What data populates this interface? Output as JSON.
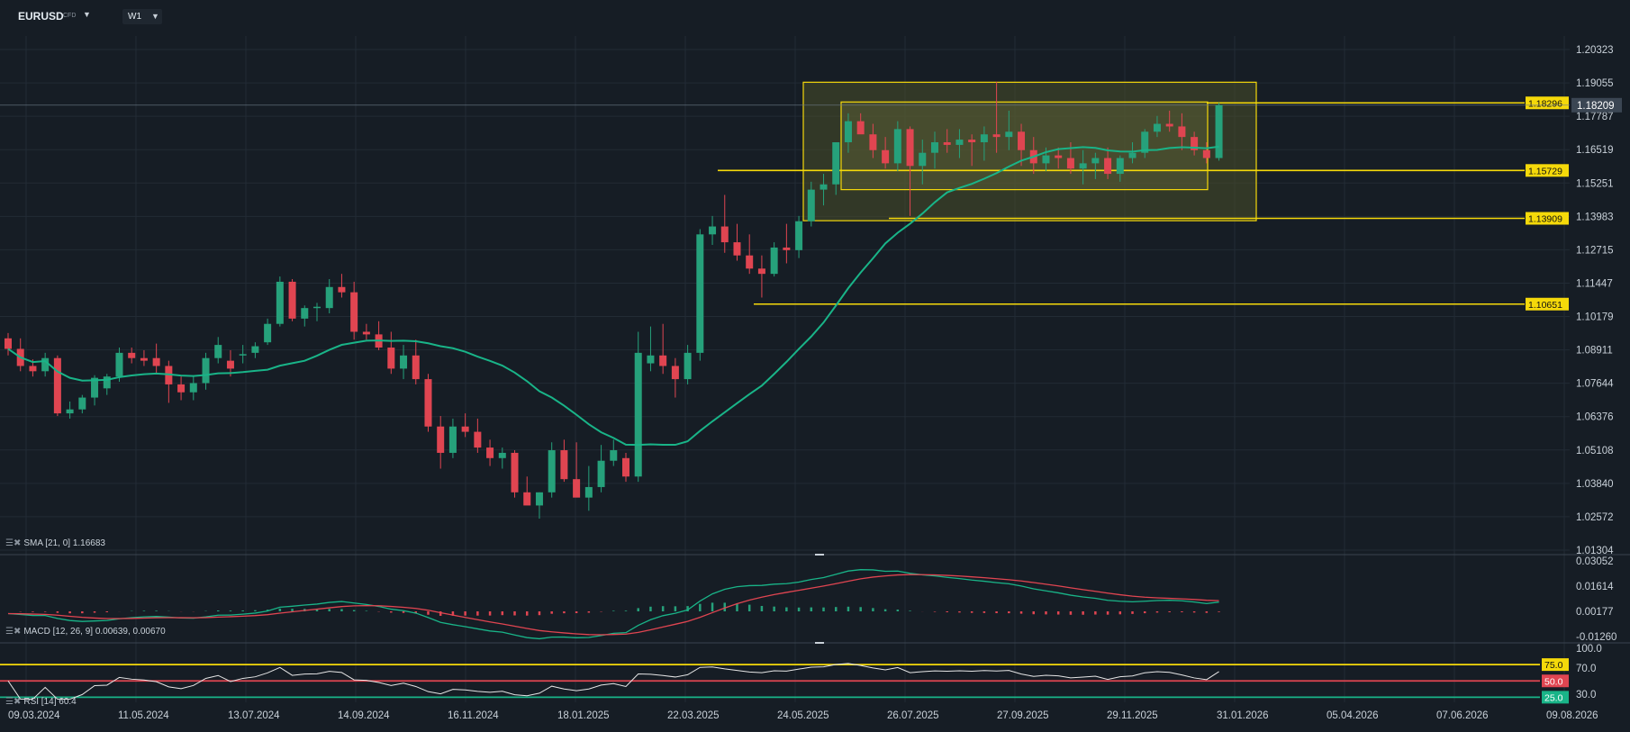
{
  "header": {
    "symbol": "EURUSD",
    "symbol_suffix": "CFD",
    "timeframe": "W1"
  },
  "colors": {
    "bg": "#161d25",
    "grid": "#222b35",
    "up": "#26a17b",
    "down": "#e04551",
    "sma": "#19b488",
    "hline": "#f5d90a",
    "box_outer_fill": "#4b4f2a",
    "box_inner_fill": "#5a5d35",
    "macd_line": "#19b488",
    "signal_line": "#e04551",
    "rsi_line": "#e6e6e6",
    "rsi_upper": "#f5d90a",
    "rsi_mid": "#e04551",
    "rsi_lower": "#19b488"
  },
  "chart_data": [
    {
      "type": "candlestick",
      "title": "EURUSD W1",
      "x_tick_labels": [
        "09.03.2024",
        "11.05.2024",
        "13.07.2024",
        "14.09.2024",
        "16.11.2024",
        "18.01.2025",
        "22.03.2025",
        "24.05.2025",
        "26.07.2025",
        "27.09.2025",
        "29.11.2025",
        "31.01.2026",
        "05.04.2026",
        "07.06.2026",
        "09.08.2026"
      ],
      "y_tick_labels": [
        "1.20323",
        "1.19055",
        "1.17787",
        "1.16519",
        "1.15251",
        "1.13983",
        "1.12715",
        "1.11447",
        "1.10179",
        "1.08911",
        "1.07644",
        "1.06376",
        "1.05108",
        "1.03840",
        "1.02572",
        "1.01304"
      ],
      "ylim": [
        1.01304,
        1.20323
      ],
      "current_price": "1.18209",
      "candles_ohlc": [
        [
          1.0935,
          1.0955,
          1.087,
          1.0895
        ],
        [
          1.0895,
          1.0935,
          1.081,
          1.083
        ],
        [
          1.083,
          1.0855,
          1.079,
          1.081
        ],
        [
          1.081,
          1.088,
          1.079,
          1.086
        ],
        [
          1.086,
          1.087,
          1.064,
          1.065
        ],
        [
          1.065,
          1.0695,
          1.063,
          1.0665
        ],
        [
          1.0665,
          1.072,
          1.065,
          1.071
        ],
        [
          1.071,
          1.0795,
          1.068,
          1.0785
        ],
        [
          1.0745,
          1.08,
          1.072,
          1.079
        ],
        [
          1.079,
          1.09,
          1.077,
          1.088
        ],
        [
          1.088,
          1.09,
          1.084,
          1.086
        ],
        [
          1.086,
          1.089,
          1.083,
          1.085
        ],
        [
          1.086,
          1.0915,
          1.08,
          1.083
        ],
        [
          1.083,
          1.085,
          1.069,
          1.076
        ],
        [
          1.076,
          1.079,
          1.07,
          1.073
        ],
        [
          1.073,
          1.079,
          1.07,
          1.0765
        ],
        [
          1.0765,
          1.088,
          1.074,
          1.086
        ],
        [
          1.086,
          1.094,
          1.084,
          1.091
        ],
        [
          1.085,
          1.089,
          1.079,
          1.082
        ],
        [
          1.087,
          1.091,
          1.084,
          1.0875
        ],
        [
          1.088,
          1.092,
          1.086,
          1.0905
        ],
        [
          1.092,
          1.101,
          1.091,
          1.099
        ],
        [
          1.099,
          1.117,
          1.098,
          1.115
        ],
        [
          1.115,
          1.116,
          1.1,
          1.101
        ],
        [
          1.101,
          1.106,
          1.098,
          1.105
        ],
        [
          1.105,
          1.107,
          1.1,
          1.1055
        ],
        [
          1.105,
          1.116,
          1.103,
          1.113
        ],
        [
          1.113,
          1.118,
          1.109,
          1.111
        ],
        [
          1.111,
          1.115,
          1.093,
          1.096
        ],
        [
          1.096,
          1.099,
          1.093,
          1.095
        ],
        [
          1.095,
          1.1,
          1.089,
          1.09
        ],
        [
          1.09,
          1.096,
          1.08,
          1.082
        ],
        [
          1.082,
          1.091,
          1.078,
          1.087
        ],
        [
          1.087,
          1.093,
          1.076,
          1.078
        ],
        [
          1.078,
          1.08,
          1.058,
          1.06
        ],
        [
          1.06,
          1.064,
          1.044,
          1.05
        ],
        [
          1.05,
          1.063,
          1.048,
          1.06
        ],
        [
          1.06,
          1.065,
          1.056,
          1.058
        ],
        [
          1.058,
          1.063,
          1.05,
          1.052
        ],
        [
          1.052,
          1.055,
          1.045,
          1.048
        ],
        [
          1.048,
          1.052,
          1.044,
          1.05
        ],
        [
          1.05,
          1.051,
          1.033,
          1.035
        ],
        [
          1.035,
          1.041,
          1.032,
          1.03
        ],
        [
          1.03,
          1.035,
          1.025,
          1.035
        ],
        [
          1.035,
          1.054,
          1.033,
          1.051
        ],
        [
          1.051,
          1.055,
          1.039,
          1.04
        ],
        [
          1.04,
          1.054,
          1.038,
          1.033
        ],
        [
          1.033,
          1.045,
          1.028,
          1.037
        ],
        [
          1.037,
          1.053,
          1.035,
          1.047
        ],
        [
          1.047,
          1.055,
          1.045,
          1.051
        ],
        [
          1.048,
          1.05,
          1.039,
          1.041
        ],
        [
          1.041,
          1.096,
          1.039,
          1.088
        ],
        [
          1.084,
          1.098,
          1.081,
          1.087
        ],
        [
          1.087,
          1.099,
          1.08,
          1.083
        ],
        [
          1.083,
          1.086,
          1.071,
          1.078
        ],
        [
          1.078,
          1.091,
          1.076,
          1.088
        ],
        [
          1.088,
          1.135,
          1.085,
          1.133
        ],
        [
          1.133,
          1.14,
          1.129,
          1.136
        ],
        [
          1.136,
          1.148,
          1.126,
          1.13
        ],
        [
          1.13,
          1.137,
          1.123,
          1.125
        ],
        [
          1.125,
          1.133,
          1.118,
          1.12
        ],
        [
          1.12,
          1.125,
          1.109,
          1.118
        ],
        [
          1.118,
          1.13,
          1.117,
          1.128
        ],
        [
          1.128,
          1.137,
          1.122,
          1.127
        ],
        [
          1.127,
          1.14,
          1.124,
          1.138
        ],
        [
          1.138,
          1.153,
          1.136,
          1.15
        ],
        [
          1.15,
          1.156,
          1.144,
          1.152
        ],
        [
          1.152,
          1.164,
          1.148,
          1.168
        ],
        [
          1.168,
          1.179,
          1.164,
          1.176
        ],
        [
          1.176,
          1.179,
          1.172,
          1.171
        ],
        [
          1.171,
          1.175,
          1.162,
          1.165
        ],
        [
          1.165,
          1.17,
          1.158,
          1.16
        ],
        [
          1.16,
          1.176,
          1.157,
          1.173
        ],
        [
          1.173,
          1.174,
          1.14,
          1.159
        ],
        [
          1.159,
          1.169,
          1.152,
          1.164
        ],
        [
          1.164,
          1.172,
          1.158,
          1.168
        ],
        [
          1.168,
          1.173,
          1.164,
          1.167
        ],
        [
          1.167,
          1.173,
          1.162,
          1.169
        ],
        [
          1.169,
          1.171,
          1.159,
          1.168
        ],
        [
          1.168,
          1.174,
          1.161,
          1.171
        ],
        [
          1.171,
          1.191,
          1.164,
          1.17
        ],
        [
          1.17,
          1.18,
          1.165,
          1.172
        ],
        [
          1.172,
          1.175,
          1.159,
          1.165
        ],
        [
          1.165,
          1.17,
          1.156,
          1.16
        ],
        [
          1.16,
          1.166,
          1.157,
          1.163
        ],
        [
          1.163,
          1.166,
          1.158,
          1.162
        ],
        [
          1.162,
          1.168,
          1.156,
          1.158
        ],
        [
          1.158,
          1.165,
          1.152,
          1.16
        ],
        [
          1.16,
          1.164,
          1.154,
          1.162
        ],
        [
          1.162,
          1.166,
          1.154,
          1.156
        ],
        [
          1.156,
          1.163,
          1.153,
          1.162
        ],
        [
          1.162,
          1.168,
          1.16,
          1.164
        ],
        [
          1.164,
          1.173,
          1.162,
          1.172
        ],
        [
          1.172,
          1.178,
          1.17,
          1.175
        ],
        [
          1.175,
          1.18,
          1.172,
          1.174
        ],
        [
          1.174,
          1.179,
          1.165,
          1.17
        ],
        [
          1.17,
          1.172,
          1.163,
          1.165
        ],
        [
          1.165,
          1.168,
          1.16,
          1.162
        ],
        [
          1.162,
          1.183,
          1.161,
          1.1821
        ]
      ],
      "series": [
        {
          "name": "SMA [21, 0]",
          "last": "1.16683"
        }
      ],
      "horizontal_lines": [
        {
          "label": "1.18296",
          "value": 1.18296
        },
        {
          "label": "1.15729",
          "value": 1.15729
        },
        {
          "label": "1.13909",
          "value": 1.13909
        },
        {
          "label": "1.10651",
          "value": 1.10651
        }
      ],
      "rectangles": [
        {
          "name": "outer-range",
          "top": 1.1908,
          "bottom": 1.1382
        },
        {
          "name": "inner-range",
          "top": 1.1833,
          "bottom": 1.15
        }
      ]
    },
    {
      "type": "line",
      "title": "MACD [12, 26, 9]",
      "values_text": "0.00639, 0.00670",
      "y_tick_labels": [
        "0.03052",
        "0.01614",
        "0.00177",
        "-0.01260"
      ],
      "ylim": [
        -0.0126,
        0.03052
      ]
    },
    {
      "type": "line",
      "title": "RSI [14]",
      "value_text": "60.4",
      "y_tick_labels": [
        "100.0",
        "70.0",
        "30.0"
      ],
      "levels": [
        {
          "label": "75.0",
          "value": 75
        },
        {
          "label": "50.0",
          "value": 50
        },
        {
          "label": "25.0",
          "value": 25
        }
      ],
      "ylim": [
        20,
        100
      ]
    }
  ]
}
